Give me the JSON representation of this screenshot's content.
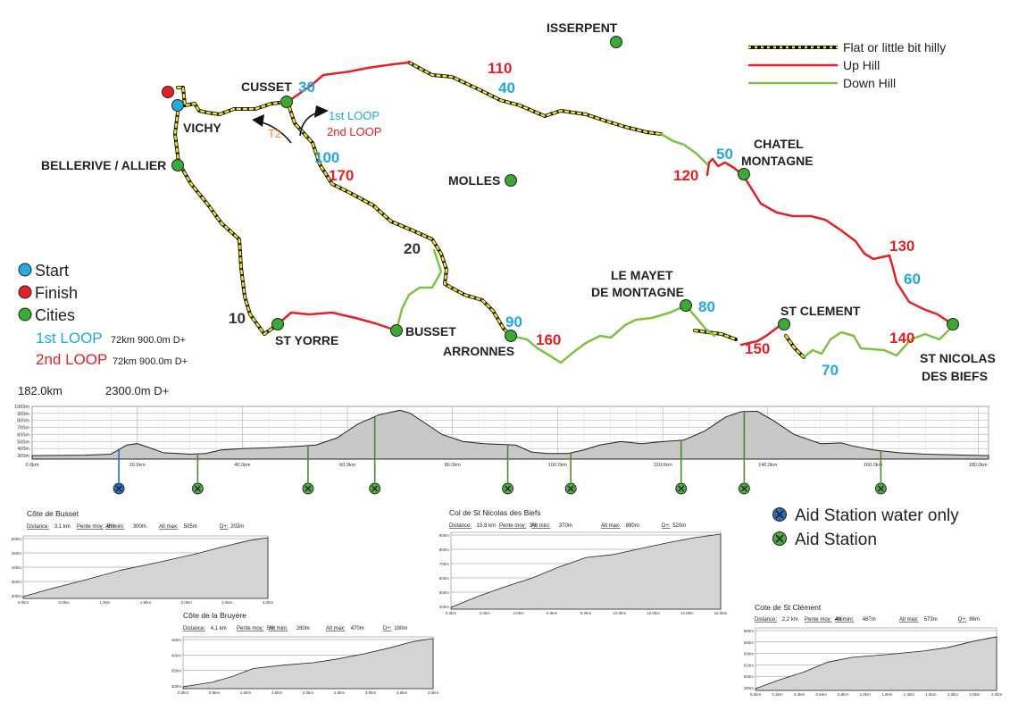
{
  "map": {
    "cities": [
      "ISSERPENT",
      "CUSSET",
      "VICHY",
      "BELLERIVE / ALLIER",
      "MOLLES",
      "CHATEL",
      "MONTAGNE",
      "ST YORRE",
      "BUSSET",
      "ARRONNES",
      "LE MAYET",
      "DE MONTAGNE",
      "ST CLEMENT",
      "ST NICOLAS",
      "DES BIEFS"
    ],
    "km_marks_loop1": [
      "30",
      "40",
      "50",
      "60",
      "70",
      "80",
      "90",
      "100"
    ],
    "km_marks_loop2": [
      "110",
      "120",
      "130",
      "140",
      "150",
      "160",
      "170"
    ],
    "km_marks_common": [
      "10",
      "20"
    ],
    "loop_labels": {
      "first": "1st LOOP",
      "second": "2nd LOOP",
      "transition": "T2"
    }
  },
  "legend_lines": [
    {
      "label": "Flat or little bit hilly",
      "color": "#111111",
      "accent": "#f5e625"
    },
    {
      "label": "Up Hill",
      "color": "#e32026"
    },
    {
      "label": "Down Hill",
      "color": "#7dc242"
    }
  ],
  "legend_points": [
    {
      "label": "Start",
      "color": "#2aa8e0"
    },
    {
      "label": "Finish",
      "color": "#e32026"
    },
    {
      "label": "Cities",
      "color": "#3aaa35"
    }
  ],
  "loops": [
    {
      "name": "1st LOOP",
      "detail": "72km 900.0m D+",
      "color": "#1fa8e0"
    },
    {
      "name": "2nd LOOP",
      "detail": "72km 900.0m D+",
      "color": "#e32026"
    }
  ],
  "profile": {
    "total_distance": "182.0km",
    "total_elevation": "2300.0m D+",
    "y_ticks": [
      "1000m",
      "900m",
      "800m",
      "700m",
      "600m",
      "500m",
      "400m",
      "300m"
    ],
    "x_ticks": [
      "0.0km",
      "20.0km",
      "40.0km",
      "60.0km",
      "80.0km",
      "100.0km",
      "120.0km",
      "140.0km",
      "160.0km",
      "180.0km"
    ],
    "elevation": [
      [
        0,
        300
      ],
      [
        10,
        305
      ],
      [
        15,
        320
      ],
      [
        18,
        450
      ],
      [
        20,
        470
      ],
      [
        22,
        420
      ],
      [
        25,
        340
      ],
      [
        28,
        330
      ],
      [
        30,
        320
      ],
      [
        33,
        330
      ],
      [
        36,
        380
      ],
      [
        40,
        400
      ],
      [
        45,
        410
      ],
      [
        50,
        430
      ],
      [
        54,
        450
      ],
      [
        58,
        550
      ],
      [
        62,
        750
      ],
      [
        66,
        880
      ],
      [
        70,
        945
      ],
      [
        72,
        900
      ],
      [
        74,
        800
      ],
      [
        78,
        600
      ],
      [
        82,
        500
      ],
      [
        86,
        470
      ],
      [
        92,
        450
      ],
      [
        95,
        350
      ],
      [
        98,
        330
      ],
      [
        102,
        330
      ],
      [
        105,
        380
      ],
      [
        108,
        450
      ],
      [
        112,
        500
      ],
      [
        116,
        470
      ],
      [
        120,
        500
      ],
      [
        124,
        520
      ],
      [
        128,
        650
      ],
      [
        132,
        850
      ],
      [
        135,
        925
      ],
      [
        138,
        930
      ],
      [
        141,
        800
      ],
      [
        145,
        600
      ],
      [
        150,
        470
      ],
      [
        154,
        480
      ],
      [
        156,
        440
      ],
      [
        160,
        380
      ],
      [
        165,
        340
      ],
      [
        170,
        320
      ],
      [
        175,
        310
      ],
      [
        182,
        300
      ]
    ],
    "aid_stations": [
      {
        "km": 16.5,
        "type": "water"
      },
      {
        "km": 31.5,
        "type": "full"
      },
      {
        "km": 52.5,
        "type": "full"
      },
      {
        "km": 65.2,
        "type": "full"
      },
      {
        "km": 90.5,
        "type": "full"
      },
      {
        "km": 102.5,
        "type": "full"
      },
      {
        "km": 123.5,
        "type": "full"
      },
      {
        "km": 135.5,
        "type": "full"
      },
      {
        "km": 161.5,
        "type": "full"
      }
    ]
  },
  "aid_legend": [
    {
      "label": "Aid Station water only",
      "color": "#2b6fb6"
    },
    {
      "label": "Aid Station",
      "color": "#4cae3c"
    }
  ],
  "climbs": [
    {
      "title": "Côte de Busset",
      "stats": [
        [
          "Distance",
          "3,1 km"
        ],
        [
          "Pente moy",
          "6%"
        ],
        [
          "Alt mini",
          "300m"
        ],
        [
          "Alt max",
          "505m"
        ],
        [
          "D+",
          "202m"
        ]
      ],
      "y_ticks": [
        "500m",
        "450m",
        "400m",
        "350m",
        "300m"
      ],
      "x_ticks": [
        "0.0km",
        "0.5km",
        "1.0km",
        "1.5km",
        "2.0km",
        "2.5km",
        "3.0km"
      ]
    },
    {
      "title": "Côte de la Bruyère",
      "stats": [
        [
          "Distance",
          "4,1 km"
        ],
        [
          "Pente moy",
          "5%"
        ],
        [
          "Alt mini",
          "280m"
        ],
        [
          "Alt max",
          "470m"
        ],
        [
          "D+",
          "190m"
        ]
      ],
      "y_ticks": [
        "450m",
        "400m",
        "350m",
        "300m"
      ],
      "x_ticks": [
        "0.0km",
        "0.5km",
        "1.0km",
        "1.5km",
        "2.0km",
        "2.5km",
        "3.0km",
        "3.5km",
        "4.0km"
      ]
    },
    {
      "title": "Col de St Nicolas des Biefs",
      "stats": [
        [
          "Distance",
          "15,8 km"
        ],
        [
          "Pente moy",
          "3%"
        ],
        [
          "Alt mini",
          "370m"
        ],
        [
          "Alt max",
          "890m"
        ],
        [
          "D+",
          "520m"
        ]
      ],
      "y_ticks": [
        "900m",
        "800m",
        "700m",
        "600m",
        "500m",
        "400m"
      ],
      "x_ticks": [
        "0.0km",
        "2.0km",
        "4.0km",
        "6.0km",
        "8.0km",
        "10.0km",
        "12.0km",
        "14.0km",
        "16.0km"
      ]
    },
    {
      "title": "Cote de St Clément",
      "stats": [
        [
          "Distance",
          "2,2 km"
        ],
        [
          "Pente moy",
          "4%"
        ],
        [
          "Alt mini",
          "487m"
        ],
        [
          "Alt max",
          "573m"
        ],
        [
          "D+",
          "86m"
        ]
      ],
      "y_ticks": [
        "580m",
        "560m",
        "540m",
        "520m",
        "500m",
        "480m"
      ],
      "x_ticks": [
        "0.0km",
        "0.2km",
        "0.4km",
        "0.6km",
        "0.8km",
        "1.0km",
        "1.2km",
        "1.4km",
        "1.6km",
        "1.8km",
        "2.0km",
        "2.2km"
      ]
    }
  ]
}
